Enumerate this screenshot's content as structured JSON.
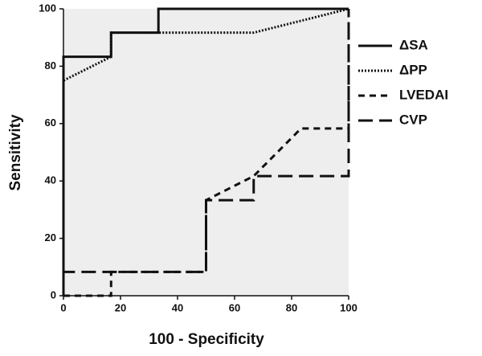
{
  "chart_data": {
    "type": "line",
    "xlabel": "100 - Specificity",
    "ylabel": "Sensitivity",
    "xlim": [
      0,
      100
    ],
    "ylim": [
      0,
      100
    ],
    "xticks": [
      0,
      20,
      40,
      60,
      80,
      100
    ],
    "yticks": [
      0,
      20,
      40,
      60,
      80,
      100
    ],
    "legend": "right",
    "series": [
      {
        "name": "ΔSA",
        "color": "#111111",
        "dash": "solid",
        "x": [
          0,
          0,
          16.7,
          16.7,
          33.3,
          33.3,
          100
        ],
        "values": [
          0,
          83.3,
          83.3,
          91.7,
          91.7,
          100,
          100
        ]
      },
      {
        "name": "ΔPP",
        "color": "#111111",
        "dash": "dotted",
        "x": [
          0,
          0,
          16.7,
          16.7,
          66.7,
          100
        ],
        "values": [
          0,
          75,
          83.3,
          91.7,
          91.7,
          100
        ]
      },
      {
        "name": "LVEDAI",
        "color": "#111111",
        "dash": "short",
        "x": [
          0,
          16.7,
          16.7,
          50,
          50,
          66.7,
          83.3,
          100,
          100
        ],
        "values": [
          0,
          0,
          8.3,
          8.3,
          33.3,
          41.7,
          58.3,
          58.3,
          100
        ]
      },
      {
        "name": "CVP",
        "color": "#111111",
        "dash": "long",
        "x": [
          0,
          0,
          50,
          50,
          66.7,
          66.7,
          100,
          100
        ],
        "values": [
          0,
          8.3,
          8.3,
          33.3,
          33.3,
          41.7,
          41.7,
          100
        ]
      }
    ]
  }
}
